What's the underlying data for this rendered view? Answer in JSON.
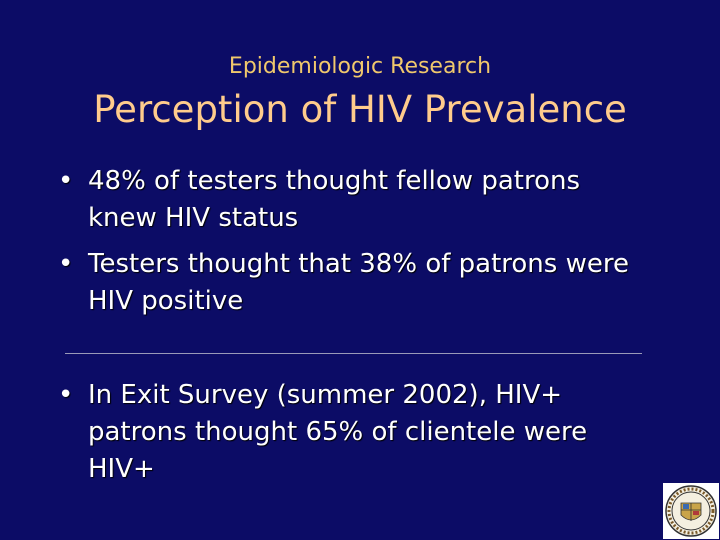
{
  "header": {
    "subtitle": "Epidemiologic Research",
    "title": "Perception of HIV Prevalence"
  },
  "bullets": [
    "48% of testers thought fellow patrons knew HIV status",
    "Testers thought that 38% of patrons were HIV positive",
    "In Exit Survey (summer 2002), HIV+ patrons thought 65% of clientele were HIV+"
  ]
}
